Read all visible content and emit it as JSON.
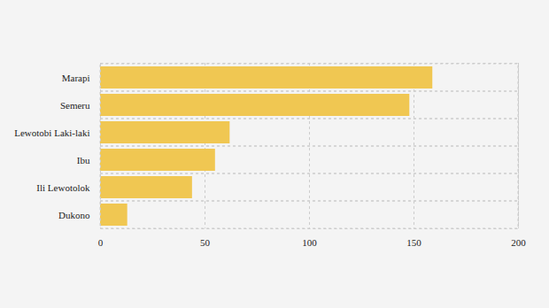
{
  "chart_data": {
    "type": "bar",
    "orientation": "horizontal",
    "categories": [
      "Marapi",
      "Semeru",
      "Lewotobi Laki-laki",
      "Ibu",
      "Ili Lewotolok",
      "Dukono"
    ],
    "values": [
      159,
      148,
      62,
      55,
      44,
      13
    ],
    "color": "#f0c752",
    "xlim": [
      0,
      200
    ],
    "xticks": [
      0,
      50,
      100,
      150,
      200
    ],
    "grid": true
  }
}
